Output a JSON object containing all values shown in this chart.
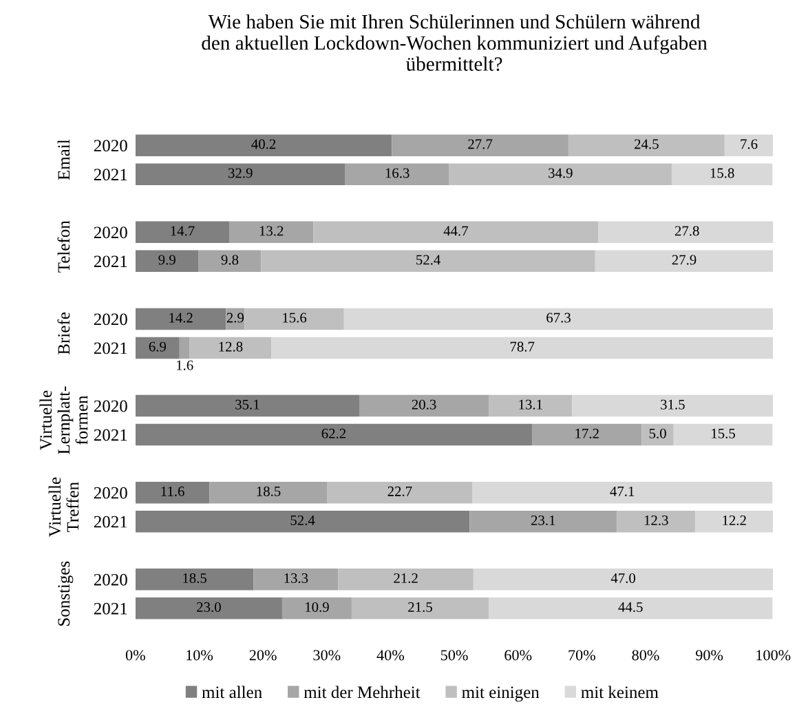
{
  "chart_data": {
    "type": "bar",
    "orientation": "horizontal",
    "stacked": true,
    "title": "Wie haben Sie mit Ihren Schülerinnen und Schülern während\nden aktuellen Lockdown-Wochen kommuniziert und Aufgaben\nübermittelt?",
    "categories": [
      "2020",
      "2021",
      "2020",
      "2021",
      "2020",
      "2021",
      "2020",
      "2021",
      "2020",
      "2021",
      "2020",
      "2021"
    ],
    "annotations": [
      "Email",
      "Telefon",
      "Briefe",
      "Virtuelle\nLernplatt-\nformen",
      "Virtuelle\nTreffen",
      "Sonstiges"
    ],
    "series": [
      {
        "name": "mit allen",
        "color": "#808080",
        "values": [
          40.2,
          32.9,
          14.7,
          9.9,
          14.2,
          6.9,
          35.1,
          62.2,
          11.6,
          52.4,
          18.5,
          23.0
        ],
        "value_labels": [
          "40.2",
          "32.9",
          "14.7",
          "9.9",
          "14.2",
          "6.9",
          "35.1",
          "62.2",
          "11.6",
          "52.4",
          "18.5",
          "23.0"
        ]
      },
      {
        "name": "mit der Mehrheit",
        "color": "#a6a6a6",
        "values": [
          27.7,
          16.3,
          13.2,
          9.8,
          2.9,
          1.6,
          20.3,
          17.2,
          18.5,
          23.1,
          13.3,
          10.9
        ],
        "value_labels": [
          "27.7",
          "16.3",
          "13.2",
          "9.8",
          "2.9",
          "1.6",
          "20.3",
          "17.2",
          "18.5",
          "23.1",
          "13.3",
          "10.9"
        ]
      },
      {
        "name": "mit einigen",
        "color": "#bfbfbf",
        "values": [
          24.5,
          34.9,
          44.7,
          52.4,
          15.6,
          12.8,
          13.1,
          5.0,
          22.7,
          12.3,
          21.2,
          21.5
        ],
        "value_labels": [
          "24.5",
          "34.9",
          "44.7",
          "52.4",
          "15.6",
          "12.8",
          "13.1",
          "5.0",
          "22.7",
          "12.3",
          "21.2",
          "21.5"
        ]
      },
      {
        "name": "mit keinem",
        "color": "#d9d9d9",
        "values": [
          7.6,
          15.8,
          27.8,
          27.9,
          67.3,
          78.7,
          31.5,
          15.5,
          47.1,
          12.2,
          47.0,
          44.5
        ],
        "value_labels": [
          "7.6",
          "15.8",
          "27.8",
          "27.9",
          "67.3",
          "78.7",
          "31.5",
          "15.5",
          "47.1",
          "12.2",
          "47.0",
          "44.5"
        ]
      }
    ],
    "xlim": [
      0,
      100
    ],
    "xticks": [
      {
        "value": 0,
        "label": "0%"
      },
      {
        "value": 10,
        "label": "10%"
      },
      {
        "value": 20,
        "label": "20%"
      },
      {
        "value": 30,
        "label": "30%"
      },
      {
        "value": 40,
        "label": "40%"
      },
      {
        "value": 50,
        "label": "50%"
      },
      {
        "value": 60,
        "label": "60%"
      },
      {
        "value": 70,
        "label": "70%"
      },
      {
        "value": 80,
        "label": "80%"
      },
      {
        "value": 90,
        "label": "90%"
      },
      {
        "value": 100,
        "label": "100%"
      }
    ],
    "grid": false,
    "legend": "bottom"
  }
}
